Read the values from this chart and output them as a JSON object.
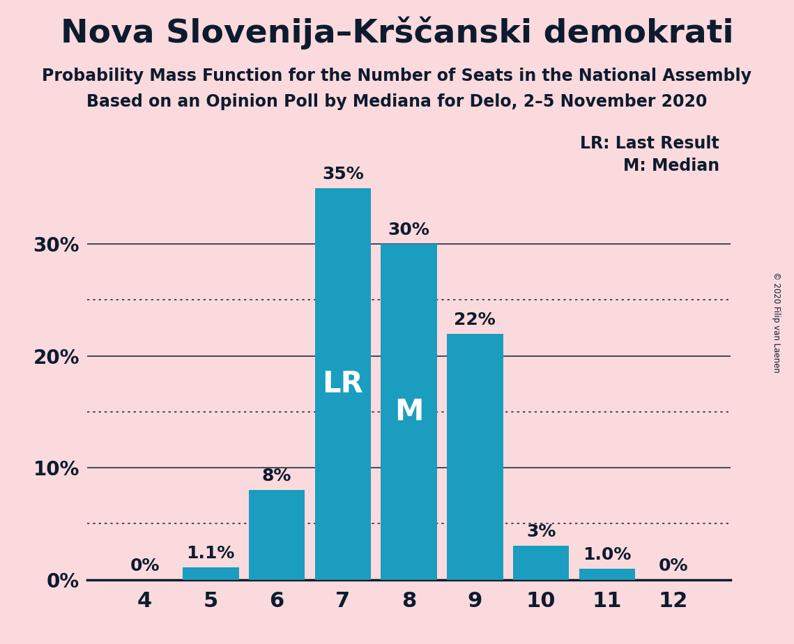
{
  "title": "Nova Slovenija–Krščanski demokrati",
  "subtitle1": "Probability Mass Function for the Number of Seats in the National Assembly",
  "subtitle2": "Based on an Opinion Poll by Mediana for Delo, 2–5 November 2020",
  "copyright": "© 2020 Filip van Laenen",
  "categories": [
    4,
    5,
    6,
    7,
    8,
    9,
    10,
    11,
    12
  ],
  "values": [
    0.0,
    1.1,
    8.0,
    35.0,
    30.0,
    22.0,
    3.0,
    1.0,
    0.0
  ],
  "bar_color": "#1a9dbf",
  "background_color": "#fadadd",
  "text_color": "#0d1b2e",
  "bar_labels": [
    "0%",
    "1.1%",
    "8%",
    "35%",
    "30%",
    "22%",
    "3%",
    "1.0%",
    "0%"
  ],
  "lr_bar": 7,
  "median_bar": 8,
  "lr_label": "LR",
  "median_label": "M",
  "legend_lr": "LR: Last Result",
  "legend_m": "M: Median",
  "ylim_max": 38,
  "ytick_solid": [
    10,
    20,
    30
  ],
  "ytick_dotted": [
    5,
    15,
    25
  ],
  "ytick_labels_pos": [
    0,
    10,
    20,
    30
  ],
  "ytick_labels_val": [
    "0%",
    "10%",
    "20%",
    "30%"
  ]
}
